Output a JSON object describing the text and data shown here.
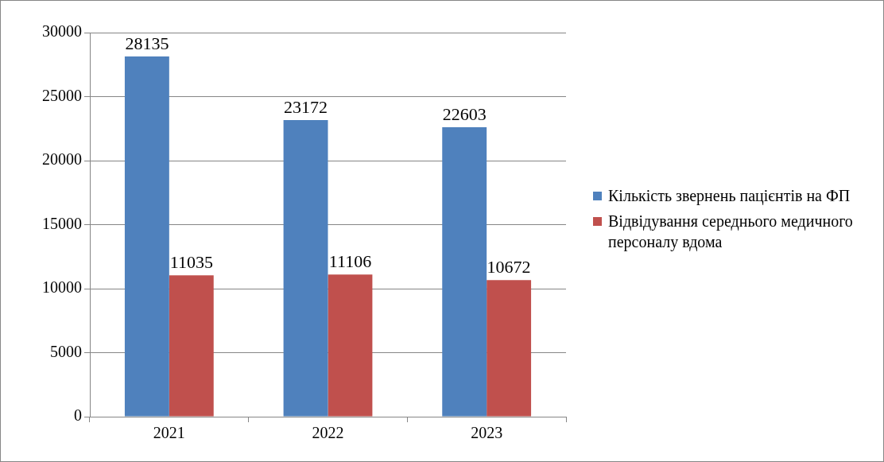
{
  "chart_data": {
    "type": "bar",
    "categories": [
      "2021",
      "2022",
      "2023"
    ],
    "series": [
      {
        "name": "Кількість звернень пацієнтів на ФП",
        "color": "#4f81bd",
        "values": [
          28135,
          23172,
          22603
        ]
      },
      {
        "name": "Відвідування середнього медичного персоналу вдома",
        "color": "#c0504d",
        "values": [
          11035,
          11106,
          10672
        ]
      }
    ],
    "ylim": [
      0,
      30000
    ],
    "yticks": [
      0,
      5000,
      10000,
      15000,
      20000,
      25000,
      30000
    ],
    "grid": "y",
    "legend": "right",
    "data_labels": true
  }
}
